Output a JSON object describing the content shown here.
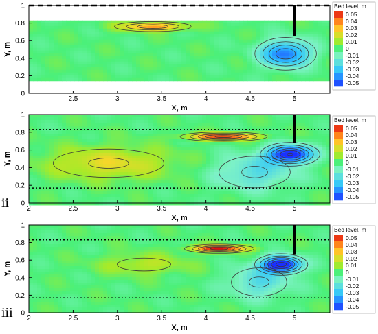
{
  "chart_data": [
    {
      "type": "heatmap",
      "panel_label": "",
      "xlabel": "X, m",
      "ylabel": "Y, m",
      "x_ticks": [
        "2.5",
        "3",
        "3.5",
        "4",
        "4.5",
        "5"
      ],
      "y_ticks": [
        "0",
        "0.2",
        "0.4",
        "0.6",
        "0.8",
        "1"
      ],
      "xlim": [
        2.0,
        5.4
      ],
      "ylim": [
        0,
        1
      ],
      "data_extent_y": [
        0.17,
        0.83
      ],
      "wall_lines": [
        {
          "y": 1.0,
          "style": "dashed"
        }
      ],
      "obstruction": {
        "x": 5.0,
        "y_range": [
          0.65,
          1.0
        ]
      },
      "colorbar": {
        "title": "Bed level, m",
        "ticks": [
          "0.05",
          "0.04",
          "0.03",
          "0.02",
          "0.01",
          "0",
          "-0.01",
          "-0.02",
          "-0.03",
          "-0.04",
          "-0.05"
        ],
        "range": [
          -0.05,
          0.05
        ]
      },
      "features": [
        {
          "kind": "deposition",
          "x": 3.4,
          "y": 0.76,
          "peak": 0.033,
          "sx": 0.38,
          "sy": 0.05
        },
        {
          "kind": "scour",
          "x": 4.9,
          "y": 0.45,
          "peak": -0.042,
          "sx": 0.28,
          "sy": 0.15
        }
      ]
    },
    {
      "type": "heatmap",
      "panel_label": "ii",
      "xlabel": "X, m",
      "ylabel": "Y, m",
      "x_ticks": [
        "2",
        "2.5",
        "3",
        "3.5",
        "4",
        "4.5",
        "5"
      ],
      "y_ticks": [
        "0",
        "0.2",
        "0.4",
        "0.6",
        "0.8",
        "1"
      ],
      "xlim": [
        2.0,
        5.4
      ],
      "ylim": [
        0,
        1
      ],
      "data_extent_y": [
        0,
        1
      ],
      "wall_lines": [
        {
          "y": 0.83,
          "style": "dotted"
        },
        {
          "y": 0.17,
          "style": "dotted"
        }
      ],
      "obstruction": {
        "x": 5.0,
        "y_range": [
          0.68,
          1.0
        ]
      },
      "colorbar": {
        "title": "Bed level, m",
        "ticks": [
          "0.05",
          "0.04",
          "0.03",
          "0.02",
          "0.01",
          "0",
          "-0.01",
          "-0.02",
          "-0.03",
          "-0.04",
          "-0.05"
        ],
        "range": [
          -0.05,
          0.05
        ]
      },
      "features": [
        {
          "kind": "deposition",
          "x": 4.2,
          "y": 0.75,
          "peak": 0.048,
          "sx": 0.38,
          "sy": 0.04
        },
        {
          "kind": "deposition",
          "x": 2.9,
          "y": 0.45,
          "peak": 0.02,
          "sx": 0.7,
          "sy": 0.18
        },
        {
          "kind": "scour",
          "x": 4.95,
          "y": 0.55,
          "peak": -0.055,
          "sx": 0.25,
          "sy": 0.1
        },
        {
          "kind": "scour",
          "x": 4.55,
          "y": 0.35,
          "peak": -0.02,
          "sx": 0.45,
          "sy": 0.2
        }
      ]
    },
    {
      "type": "heatmap",
      "panel_label": "iii",
      "xlabel": "X, m",
      "ylabel": "Y, m",
      "x_ticks": [
        "2",
        "2.5",
        "3",
        "3.5",
        "4",
        "4.5",
        "5"
      ],
      "y_ticks": [
        "0",
        "0.2",
        "0.4",
        "0.6",
        "0.8",
        "1"
      ],
      "xlim": [
        2.0,
        5.4
      ],
      "ylim": [
        0,
        1
      ],
      "data_extent_y": [
        0,
        1
      ],
      "wall_lines": [
        {
          "y": 0.83,
          "style": "dotted"
        },
        {
          "y": 0.17,
          "style": "dotted"
        }
      ],
      "obstruction": {
        "x": 5.0,
        "y_range": [
          0.66,
          1.0
        ]
      },
      "colorbar": {
        "title": "Bed level, m",
        "ticks": [
          "0.05",
          "0.04",
          "0.03",
          "0.02",
          "0.01",
          "0",
          "-0.01",
          "-0.02",
          "-0.03",
          "-0.04",
          "-0.05"
        ],
        "range": [
          -0.05,
          0.05
        ]
      },
      "features": [
        {
          "kind": "deposition",
          "x": 4.15,
          "y": 0.73,
          "peak": 0.05,
          "sx": 0.3,
          "sy": 0.04
        },
        {
          "kind": "deposition",
          "x": 3.3,
          "y": 0.55,
          "peak": 0.013,
          "sx": 0.5,
          "sy": 0.12
        },
        {
          "kind": "scour",
          "x": 4.85,
          "y": 0.55,
          "peak": -0.058,
          "sx": 0.22,
          "sy": 0.09
        },
        {
          "kind": "scour",
          "x": 4.6,
          "y": 0.35,
          "peak": -0.02,
          "sx": 0.35,
          "sy": 0.18
        }
      ]
    }
  ]
}
